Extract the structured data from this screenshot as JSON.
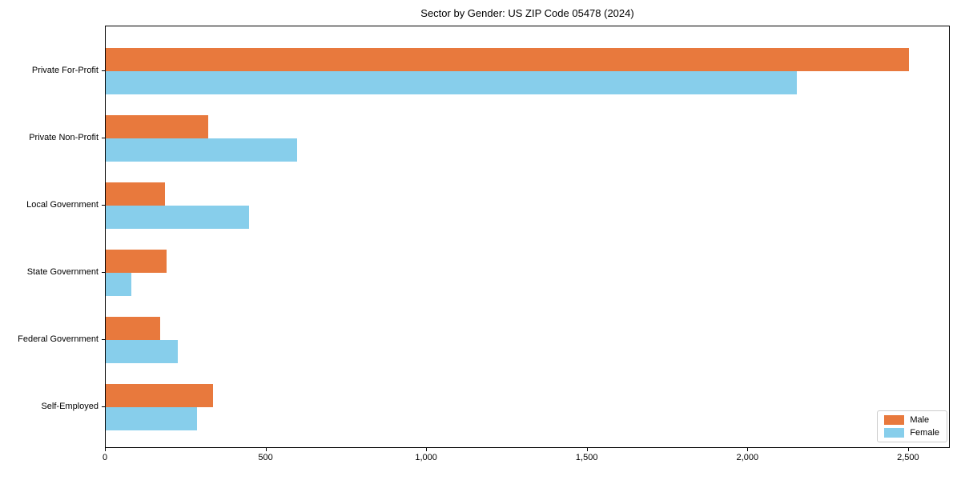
{
  "chart_data": {
    "type": "bar",
    "orientation": "horizontal",
    "title": "Sector by Gender: US ZIP Code 05478 (2024)",
    "categories": [
      "Private For-Profit",
      "Private Non-Profit",
      "Local Government",
      "State Government",
      "Federal Government",
      "Self-Employed"
    ],
    "series": [
      {
        "name": "Male",
        "color": "#e8793d",
        "values": [
          2500,
          320,
          185,
          190,
          170,
          335
        ]
      },
      {
        "name": "Female",
        "color": "#87ceeb",
        "values": [
          2150,
          595,
          445,
          80,
          225,
          285
        ]
      }
    ],
    "xlabel": "",
    "ylabel": "",
    "xlim": [
      0,
      2630
    ],
    "x_ticks": [
      {
        "value": 0,
        "label": "0"
      },
      {
        "value": 500,
        "label": "500"
      },
      {
        "value": 1000,
        "label": "1,000"
      },
      {
        "value": 1500,
        "label": "1,500"
      },
      {
        "value": 2000,
        "label": "2,000"
      },
      {
        "value": 2500,
        "label": "2,500"
      }
    ],
    "grid": false,
    "legend_position": "lower right"
  },
  "colors": {
    "background": "#ffffff",
    "axis": "#000000",
    "text": "#000000",
    "legend_border": "#cccccc",
    "male": "#e8793d",
    "female": "#87ceeb"
  }
}
